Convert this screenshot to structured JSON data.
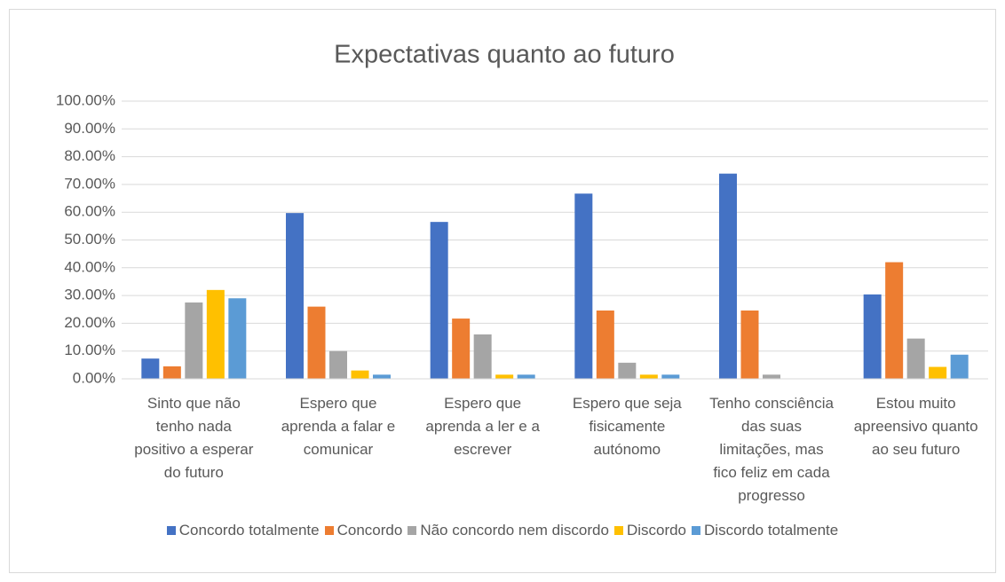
{
  "chart_data": {
    "type": "bar",
    "title": "Expectativas quanto ao futuro",
    "categories": [
      "Sinto que não tenho nada positivo a esperar do futuro",
      "Espero que aprenda a falar e comunicar",
      "Espero que aprenda a ler e a escrever",
      "Espero que seja fisicamente autónomo",
      "Tenho consciência das suas limitações, mas fico feliz em cada progresso",
      "Estou muito apreensivo quanto ao seu futuro"
    ],
    "series": [
      {
        "name": "Concordo totalmente",
        "color": "#4472c4",
        "values": [
          7.3,
          59.7,
          56.5,
          66.7,
          73.9,
          30.4
        ]
      },
      {
        "name": "Concordo",
        "color": "#ed7d31",
        "values": [
          4.5,
          26,
          21.7,
          24.6,
          24.6,
          42
        ]
      },
      {
        "name": "Não concordo nem discordo",
        "color": "#a5a5a5",
        "values": [
          27.5,
          10,
          16,
          5.8,
          1.5,
          14.5
        ]
      },
      {
        "name": "Discordo",
        "color": "#ffc000",
        "values": [
          32,
          3,
          1.5,
          1.5,
          0,
          4.3
        ]
      },
      {
        "name": "Discordo totalmente",
        "color": "#5b9bd5",
        "values": [
          29,
          1.5,
          1.5,
          1.5,
          0,
          8.7
        ]
      }
    ],
    "ylim": [
      0,
      100
    ],
    "yticks": [
      {
        "value": 0,
        "label": "0.00%"
      },
      {
        "value": 10,
        "label": "10.00%"
      },
      {
        "value": 20,
        "label": "20.00%"
      },
      {
        "value": 30,
        "label": "30.00%"
      },
      {
        "value": 40,
        "label": "40.00%"
      },
      {
        "value": 50,
        "label": "50.00%"
      },
      {
        "value": 60,
        "label": "60.00%"
      },
      {
        "value": 70,
        "label": "70.00%"
      },
      {
        "value": 80,
        "label": "80.00%"
      },
      {
        "value": 90,
        "label": "90.00%"
      },
      {
        "value": 100,
        "label": "100.00%"
      }
    ],
    "grid": true,
    "legend": "bottom"
  }
}
